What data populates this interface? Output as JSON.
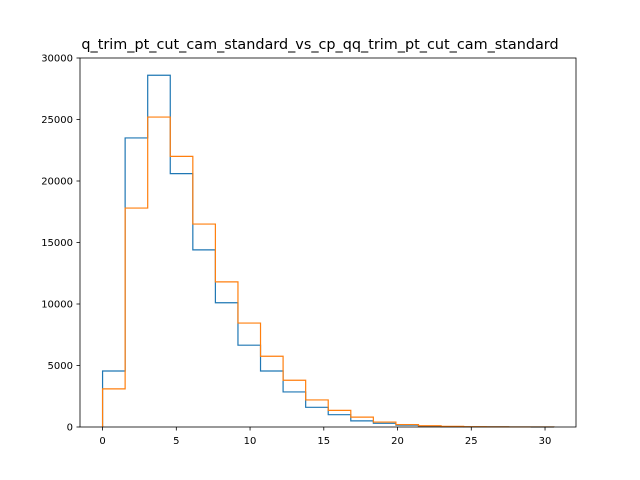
{
  "chart_data": {
    "type": "histogram-step",
    "title": "q_trim_pt_cut_cam_standard_vs_cp_qq_trim_pt_cut_cam_standard",
    "xlabel": "",
    "ylabel": "",
    "xlim": [
      -1.53,
      32.1
    ],
    "ylim": [
      0,
      30000
    ],
    "xticks": [
      0,
      5,
      10,
      15,
      20,
      25,
      30
    ],
    "yticks": [
      0,
      5000,
      10000,
      15000,
      20000,
      25000,
      30000
    ],
    "bin_edges": [
      0,
      1.53,
      3.06,
      4.59,
      6.12,
      7.65,
      9.18,
      10.71,
      12.24,
      13.77,
      15.3,
      16.83,
      18.36,
      19.89,
      21.42,
      22.95,
      24.48,
      26.01,
      27.54,
      29.07,
      30.6
    ],
    "series": [
      {
        "color": "#1f77b4",
        "values": [
          4550,
          23500,
          28600,
          20600,
          14400,
          10100,
          6650,
          4550,
          2850,
          1600,
          1000,
          500,
          300,
          150,
          60,
          30,
          15,
          8,
          4,
          2
        ]
      },
      {
        "color": "#ff7f0e",
        "values": [
          3100,
          17800,
          25200,
          22000,
          16500,
          11800,
          8450,
          5750,
          3800,
          2200,
          1350,
          800,
          400,
          200,
          100,
          50,
          25,
          12,
          6,
          3
        ]
      }
    ],
    "legend": "none",
    "grid": false
  }
}
